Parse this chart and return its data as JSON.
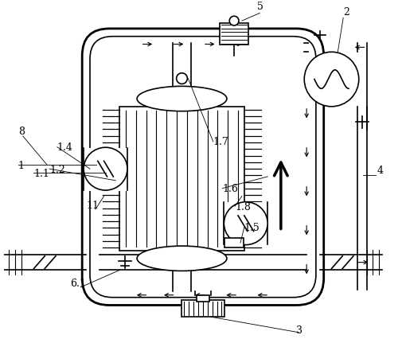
{
  "bg_color": "#ffffff",
  "lc": "#000000",
  "lw": 1.2,
  "tlw": 2.0,
  "figsize": [
    5.05,
    4.27
  ],
  "dpi": 100
}
